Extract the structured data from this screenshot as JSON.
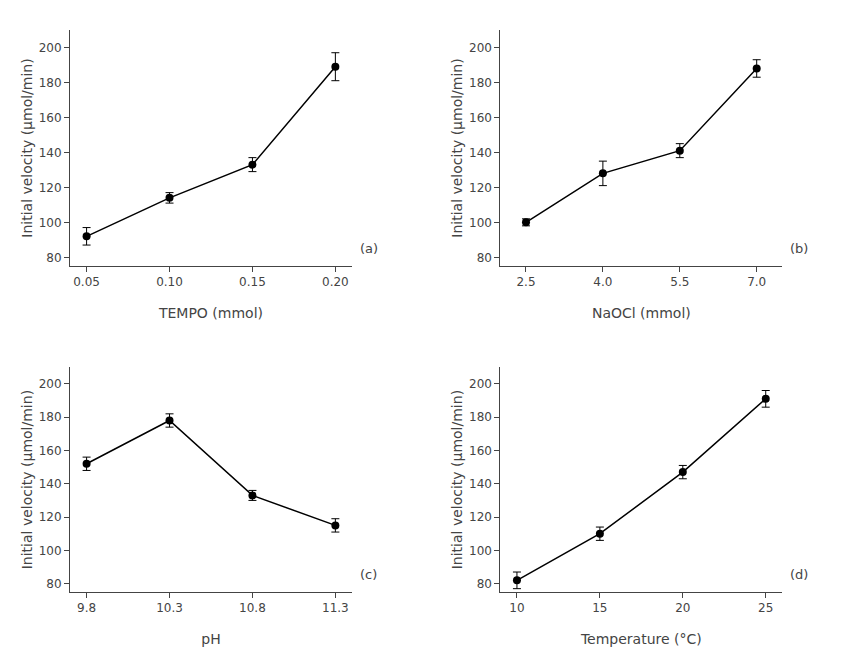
{
  "chart_data": [
    {
      "type": "line",
      "x": [
        0.05,
        0.1,
        0.15,
        0.2
      ],
      "values": [
        92,
        114,
        133,
        189
      ],
      "errors": [
        5,
        3,
        4,
        8
      ],
      "xlabel": "TEMPO (mmol)",
      "ylabel": "Initial velocity (μmol/min)",
      "xlim": [
        0.04,
        0.21
      ],
      "xticks": [
        0.05,
        {
          "value": 0.1,
          "label": "0.10"
        },
        0.15,
        {
          "value": 0.2,
          "label": "0.20"
        }
      ],
      "ylim": [
        75,
        210
      ],
      "yticks": [
        80,
        100,
        120,
        140,
        160,
        180,
        200
      ],
      "annotations": [
        "(a)"
      ],
      "color": "#000000",
      "marker": "circle",
      "grid": false
    },
    {
      "type": "line",
      "x": [
        2.5,
        4.0,
        5.5,
        7.0
      ],
      "values": [
        100,
        128,
        141,
        188
      ],
      "errors": [
        2,
        7,
        4,
        5
      ],
      "xlabel": "NaOCl (mmol)",
      "ylabel": "Initial velocity (μmol/min)",
      "xlim": [
        2,
        7.5
      ],
      "xticks": [
        2.5,
        {
          "value": 4,
          "label": "4.0"
        },
        5.5,
        {
          "value": 7,
          "label": "7.0"
        }
      ],
      "ylim": [
        75,
        210
      ],
      "yticks": [
        80,
        100,
        120,
        140,
        160,
        180,
        200
      ],
      "annotations": [
        "(b)"
      ],
      "color": "#000000",
      "marker": "circle",
      "grid": false
    },
    {
      "type": "line",
      "x": [
        9.8,
        10.3,
        10.8,
        11.3
      ],
      "values": [
        152,
        178,
        133,
        115
      ],
      "errors": [
        4,
        4,
        3,
        4
      ],
      "xlabel": "pH",
      "ylabel": "Initial velocity (μmol/min)",
      "xlim": [
        9.7,
        11.4
      ],
      "xticks": [
        9.8,
        10.3,
        10.8,
        11.3
      ],
      "ylim": [
        75,
        210
      ],
      "yticks": [
        80,
        100,
        120,
        140,
        160,
        180,
        200
      ],
      "annotations": [
        "(c)"
      ],
      "color": "#000000",
      "marker": "circle",
      "grid": false
    },
    {
      "type": "line",
      "x": [
        10,
        15,
        20,
        25
      ],
      "values": [
        82,
        110,
        147,
        191
      ],
      "errors": [
        5,
        4,
        4,
        5
      ],
      "xlabel": "Temperature (°C)",
      "ylabel": "Initial velocity (μmol/min)",
      "xlim": [
        9,
        26
      ],
      "xticks": [
        10,
        15,
        20,
        25
      ],
      "ylim": [
        75,
        210
      ],
      "yticks": [
        80,
        100,
        120,
        140,
        160,
        180,
        200
      ],
      "annotations": [
        "(d)"
      ],
      "color": "#000000",
      "marker": "circle",
      "grid": false
    }
  ]
}
